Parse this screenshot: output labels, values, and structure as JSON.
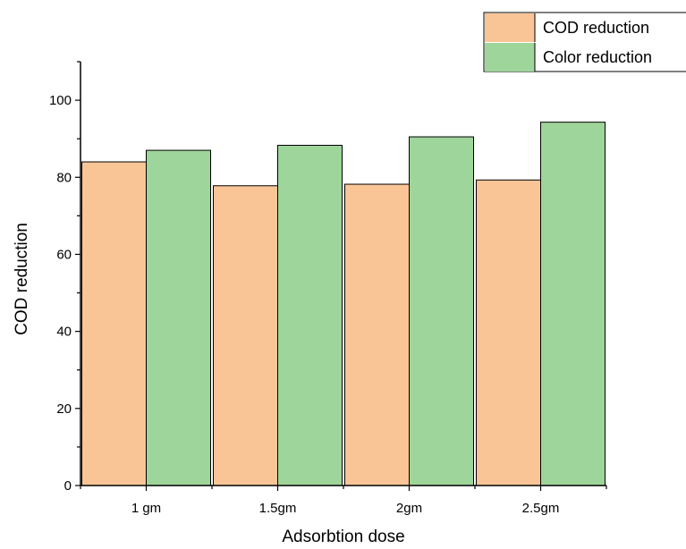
{
  "chart_data": {
    "type": "bar",
    "categories": [
      "1 gm",
      "1.5gm",
      "2gm",
      "2.5gm"
    ],
    "series": [
      {
        "name": "COD reduction",
        "values": [
          84,
          77.8,
          78.2,
          79.3
        ],
        "color": "#f9c596"
      },
      {
        "name": "Color reduction",
        "values": [
          87,
          88.3,
          90.5,
          94.3
        ],
        "color": "#9ed59a"
      }
    ],
    "xlabel": "Adsorbtion dose",
    "ylabel": "COD reduction",
    "ylim": [
      0,
      110
    ],
    "yticks": [
      0,
      20,
      40,
      60,
      80,
      100
    ],
    "grid": false,
    "legend_position": "top-right"
  }
}
